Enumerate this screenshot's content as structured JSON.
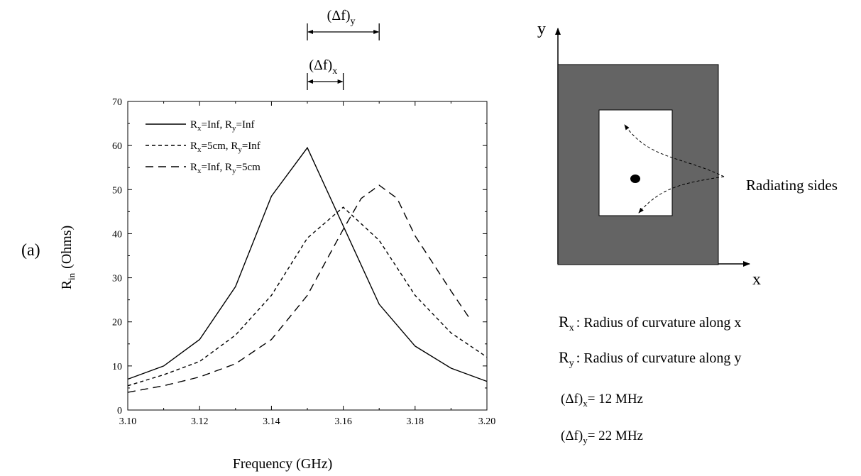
{
  "panel_label": "(a)",
  "chart_data": {
    "type": "line",
    "xlabel": "Frequency (GHz)",
    "ylabel": {
      "main": "R",
      "sub": "in",
      "rest": "(Ohms)"
    },
    "xlim": [
      3.1,
      3.2
    ],
    "ylim": [
      0,
      70
    ],
    "x_ticks": [
      "3.10",
      "3.12",
      "3.14",
      "3.16",
      "3.18",
      "3.20"
    ],
    "y_ticks": [
      "0",
      "10",
      "20",
      "30",
      "40",
      "50",
      "60",
      "70"
    ],
    "legend_position": "top-left",
    "grid": false,
    "series": [
      {
        "name": {
          "r1": "R",
          "s1": "x",
          "v1": "=Inf, ",
          "r2": "R",
          "s2": "y",
          "v2": "=Inf"
        },
        "style": "solid",
        "x": [
          3.1,
          3.11,
          3.12,
          3.13,
          3.14,
          3.15,
          3.17,
          3.18,
          3.19,
          3.2
        ],
        "y": [
          7,
          10,
          16,
          28,
          48.5,
          59.5,
          24,
          14.5,
          9.5,
          6.5
        ]
      },
      {
        "name": {
          "r1": "R",
          "s1": "x",
          "v1": "=5cm, ",
          "r2": "R",
          "s2": "y",
          "v2": "=Inf"
        },
        "style": "short-dash",
        "x": [
          3.1,
          3.11,
          3.12,
          3.13,
          3.14,
          3.15,
          3.16,
          3.17,
          3.18,
          3.19,
          3.2
        ],
        "y": [
          5.5,
          8,
          11,
          17,
          26,
          39,
          46,
          38.5,
          26,
          17.5,
          12
        ]
      },
      {
        "name": {
          "r1": "R",
          "s1": "x",
          "v1": "=Inf, ",
          "r2": "R",
          "s2": "y",
          "v2": "=5cm"
        },
        "style": "long-dash",
        "x": [
          3.1,
          3.11,
          3.12,
          3.13,
          3.14,
          3.15,
          3.16,
          3.165,
          3.17,
          3.175,
          3.18,
          3.19,
          3.195
        ],
        "y": [
          4,
          5.5,
          7.5,
          10.5,
          16,
          26,
          41,
          48,
          51,
          48,
          39.5,
          27,
          21
        ]
      }
    ],
    "annotations": {
      "delta_y": {
        "label_main": "(Δf)",
        "label_sub": "y",
        "from": 3.15,
        "to": 3.17
      },
      "delta_x": {
        "label_main": "(Δf)",
        "label_sub": "x",
        "from": 3.15,
        "to": 3.16
      }
    }
  },
  "diagram": {
    "axis_y": "y",
    "axis_x": "x",
    "radiating_label": "Radiating sides",
    "patch_color": "#646464",
    "feed_color": "#000000"
  },
  "notes": [
    {
      "main": "R",
      "sub": "x",
      "text": ": Radius of curvature along x"
    },
    {
      "main": "R",
      "sub": "y",
      "text": ": Radius of curvature along y"
    },
    {
      "main": "(Δf)",
      "sub": "x",
      "text": "= 12 MHz"
    },
    {
      "main": "(Δf)",
      "sub": "y",
      "text": "= 22 MHz"
    }
  ]
}
